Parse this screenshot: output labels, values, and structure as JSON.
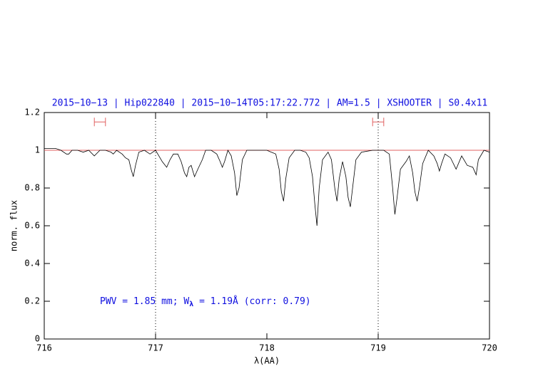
{
  "chart_data": {
    "type": "line",
    "title": "2015−10−13 | Hip022840 | 2015−10−14T05:17:22.772 | AM=1.5 | XSHOOTER | S0.4x11",
    "x_label": "λ(AA)",
    "y_label": "norm. flux",
    "annotation": {
      "text": "PWV = 1.85 mm; W",
      "subscript": "λ",
      "text_after": " = 1.19Å (corr: 0.79)"
    },
    "xlim": [
      716,
      720
    ],
    "ylim": [
      0,
      1.2
    ],
    "xticks": [
      716,
      717,
      718,
      719,
      720
    ],
    "yticks": [
      0,
      0.2,
      0.4,
      0.6,
      0.8,
      1,
      1.2
    ],
    "continuum": {
      "y": 1,
      "color": "#e06060"
    },
    "vlines": [
      717,
      719
    ],
    "ranges": [
      {
        "xmin": 716.45,
        "xmax": 716.55,
        "y": 1.15
      },
      {
        "xmin": 718.95,
        "xmax": 719.05,
        "y": 1.15
      }
    ],
    "range_color": "#e06060",
    "series": [
      {
        "color": "#000000",
        "x": [
          716.0,
          716.05,
          716.1,
          716.15,
          716.2,
          716.22,
          716.25,
          716.3,
          716.35,
          716.4,
          716.45,
          716.5,
          716.55,
          716.6,
          716.62,
          716.65,
          716.7,
          716.73,
          716.76,
          716.78,
          716.8,
          716.82,
          716.85,
          716.9,
          716.95,
          717.0,
          717.03,
          717.06,
          717.1,
          717.13,
          717.16,
          717.2,
          717.23,
          717.26,
          717.28,
          717.3,
          717.32,
          717.35,
          717.38,
          717.42,
          717.45,
          717.5,
          717.55,
          717.58,
          717.6,
          717.62,
          717.65,
          717.68,
          717.71,
          717.73,
          717.75,
          717.78,
          717.82,
          717.9,
          718.0,
          718.08,
          718.11,
          718.13,
          718.15,
          718.17,
          718.2,
          718.25,
          718.3,
          718.35,
          718.38,
          718.41,
          718.43,
          718.45,
          718.47,
          718.5,
          718.55,
          718.58,
          718.61,
          718.63,
          718.65,
          718.68,
          718.71,
          718.73,
          718.75,
          718.77,
          718.8,
          718.85,
          718.95,
          719.05,
          719.1,
          719.13,
          719.15,
          719.17,
          719.2,
          719.25,
          719.28,
          719.31,
          719.33,
          719.35,
          719.37,
          719.4,
          719.45,
          719.5,
          719.53,
          719.55,
          719.57,
          719.6,
          719.65,
          719.7,
          719.75,
          719.8,
          719.85,
          719.88,
          719.9,
          719.95,
          720.0
        ],
        "values": [
          1.01,
          1.01,
          1.01,
          1.0,
          0.98,
          0.98,
          1.0,
          1.0,
          0.99,
          1.0,
          0.97,
          1.0,
          1.0,
          0.99,
          0.98,
          1.0,
          0.98,
          0.96,
          0.95,
          0.9,
          0.86,
          0.92,
          0.99,
          1.0,
          0.98,
          1.0,
          0.97,
          0.94,
          0.91,
          0.95,
          0.98,
          0.98,
          0.94,
          0.88,
          0.86,
          0.91,
          0.92,
          0.86,
          0.9,
          0.95,
          1.0,
          1.0,
          0.98,
          0.94,
          0.91,
          0.94,
          1.0,
          0.97,
          0.88,
          0.76,
          0.8,
          0.95,
          1.0,
          1.0,
          1.0,
          0.98,
          0.9,
          0.78,
          0.73,
          0.85,
          0.96,
          1.0,
          1.0,
          0.99,
          0.96,
          0.86,
          0.72,
          0.6,
          0.8,
          0.95,
          0.99,
          0.95,
          0.8,
          0.73,
          0.85,
          0.94,
          0.86,
          0.75,
          0.7,
          0.8,
          0.95,
          0.99,
          1.0,
          1.0,
          0.98,
          0.8,
          0.66,
          0.75,
          0.9,
          0.94,
          0.97,
          0.88,
          0.78,
          0.73,
          0.8,
          0.93,
          1.0,
          0.97,
          0.93,
          0.89,
          0.93,
          0.98,
          0.96,
          0.9,
          0.97,
          0.92,
          0.91,
          0.87,
          0.95,
          1.0,
          0.99
        ]
      }
    ]
  }
}
